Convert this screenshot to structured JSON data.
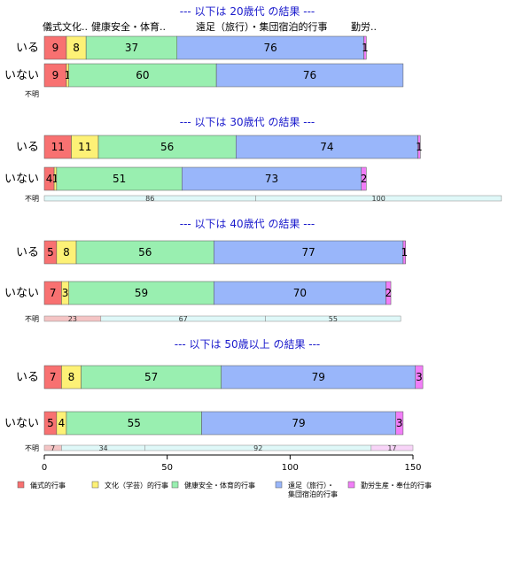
{
  "chart_data": {
    "type": "bar",
    "orientation": "horizontal",
    "stacked": true,
    "xlim": [
      0,
      150
    ],
    "xticks": [
      0,
      50,
      100,
      150
    ],
    "category_names": [
      "儀式的行事",
      "文化（学芸）的行事",
      "健康安全・体育的行事",
      "遠足（旅行）・集団宿泊的行事",
      "勤労生産・奉仕的行事"
    ],
    "legend_lines": [
      [
        "儀式的行事"
      ],
      [
        "文化（学芸）的行事"
      ],
      [
        "健康安全・体育的行事"
      ],
      [
        "遠足（旅行）・",
        "集団宿泊的行事"
      ],
      [
        "勤労生産・奉仕的行事"
      ]
    ],
    "column_headers": [
      "儀式文化..",
      "健康安全・体育..",
      "遠足（旅行）・集団宿泊的行事",
      "勤労.."
    ],
    "colors": [
      "#f87171",
      "#fdf176",
      "#99efb0",
      "#99b6fa",
      "#f17ef7"
    ],
    "unknown_colors": [
      "#f4c4c4",
      "#dff8f8",
      "#dff8f8",
      "#dff8f8",
      "#f8d4f8"
    ],
    "panels": [
      {
        "title": "--- 以下は 20歳代 の結果 ---",
        "rows": [
          {
            "label": "いる",
            "values": [
              9,
              8,
              37,
              76,
              1
            ]
          },
          {
            "label": "いない",
            "values": [
              9,
              1,
              60,
              76,
              0
            ]
          }
        ],
        "unknown_label": "不明",
        "unknown": [],
        "unknown_scale": 1
      },
      {
        "title": "--- 以下は 30歳代 の結果 ---",
        "rows": [
          {
            "label": "いる",
            "values": [
              11,
              11,
              56,
              74,
              1
            ]
          },
          {
            "label": "いない",
            "values": [
              4,
              1,
              51,
              73,
              2
            ]
          }
        ],
        "unknown_label": "不明",
        "unknown": [
          0,
          0,
          86,
          100,
          0
        ],
        "unknown_scale": 1
      },
      {
        "title": "--- 以下は 40歳代 の結果 ---",
        "rows": [
          {
            "label": "いる",
            "values": [
              5,
              8,
              56,
              77,
              1
            ]
          },
          {
            "label": "いない",
            "values": [
              7,
              3,
              59,
              70,
              2
            ]
          }
        ],
        "unknown_label": "不明",
        "unknown": [
          23,
          0,
          67,
          55,
          0
        ],
        "unknown_scale": 1
      },
      {
        "title": "--- 以下は 50歳以上 の結果 ---",
        "rows": [
          {
            "label": "いる",
            "values": [
              7,
              8,
              57,
              79,
              3
            ]
          },
          {
            "label": "いない",
            "values": [
              5,
              4,
              55,
              79,
              3
            ]
          }
        ],
        "unknown_label": "不明",
        "unknown": [
          7,
          0,
          34,
          92,
          17
        ],
        "unknown_scale": 1
      }
    ]
  }
}
